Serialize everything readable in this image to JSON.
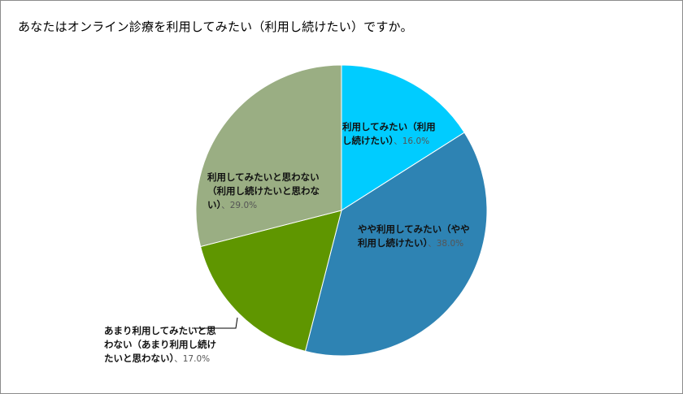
{
  "chart_data": {
    "type": "pie",
    "title": "あなたはオンライン診療を利用してみたい（利用し続けたい）ですか。",
    "slices": [
      {
        "label_lines": [
          "利用してみたい（利用",
          "し続けたい）"
        ],
        "value": 16.0,
        "value_text": "16.0%",
        "color": "#00ccff"
      },
      {
        "label_lines": [
          "やや利用してみたい（やや",
          "利用し続けたい）"
        ],
        "value": 38.0,
        "value_text": "38.0%",
        "color": "#2e83b3"
      },
      {
        "label_lines": [
          "あまり利用してみたいと思",
          "わない（あまり利用し続け",
          "たいと思わない）"
        ],
        "value": 17.0,
        "value_text": "17.0%",
        "color": "#5f9600"
      },
      {
        "label_lines": [
          "利用してみたいと思わない",
          "（利用し続けたいと思わな",
          "い）"
        ],
        "value": 29.0,
        "value_text": "29.0%",
        "color": "#9aae83"
      }
    ],
    "legend": "none",
    "label_separator": "、"
  }
}
